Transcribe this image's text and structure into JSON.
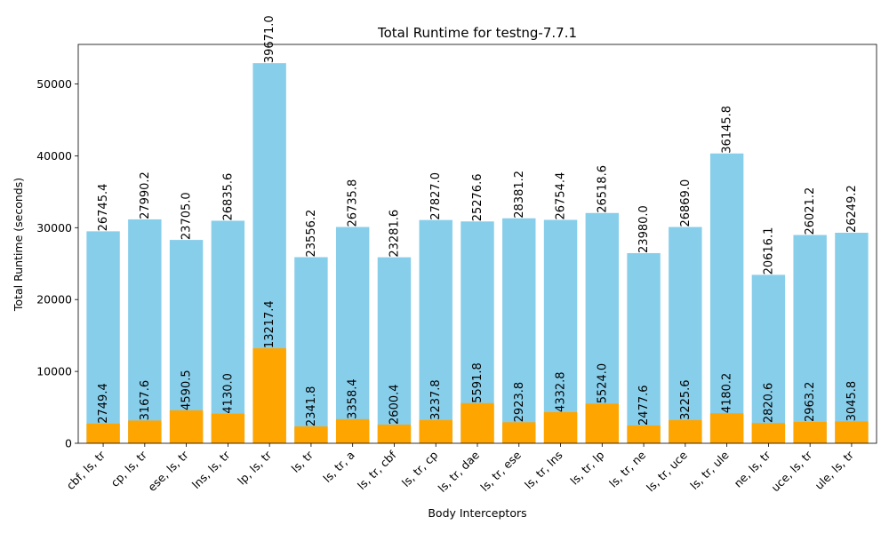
{
  "chart_data": {
    "type": "bar",
    "title": "Total Runtime for testng-7.7.1",
    "xlabel": "Body Interceptors",
    "ylabel": "Total Runtime (seconds)",
    "ylim": [
      0,
      55500
    ],
    "yticks": [
      0,
      10000,
      20000,
      30000,
      40000,
      50000
    ],
    "grid": false,
    "colors": {
      "base": "#ffa500",
      "top": "#87ceeb"
    },
    "categories": [
      "cbf, ls, tr",
      "cp, ls, tr",
      "ese, ls, tr",
      "lns, ls, tr",
      "lp, ls, tr",
      "ls, tr",
      "ls, tr, a",
      "ls, tr, cbf",
      "ls, tr, cp",
      "ls, tr, dae",
      "ls, tr, ese",
      "ls, tr, lns",
      "ls, tr, lp",
      "ls, tr, ne",
      "ls, tr, uce",
      "ls, tr, ule",
      "ne, ls, tr",
      "uce, ls, tr",
      "ule, ls, tr"
    ],
    "series": [
      {
        "values": [
          2749.4,
          3167.6,
          4590.5,
          4130.0,
          13217.4,
          2341.8,
          3358.4,
          2600.4,
          3237.8,
          5591.8,
          2923.8,
          4332.8,
          5524.0,
          2477.6,
          3225.6,
          4180.2,
          2820.6,
          2963.2,
          3045.8
        ]
      },
      {
        "values": [
          26745.4,
          27990.2,
          23705.0,
          26835.6,
          39671.0,
          23556.2,
          26735.8,
          23281.6,
          27827.0,
          25276.6,
          28381.2,
          26754.4,
          26518.6,
          23980.0,
          26869.0,
          36145.8,
          20616.1,
          26021.2,
          26249.2
        ]
      }
    ]
  }
}
